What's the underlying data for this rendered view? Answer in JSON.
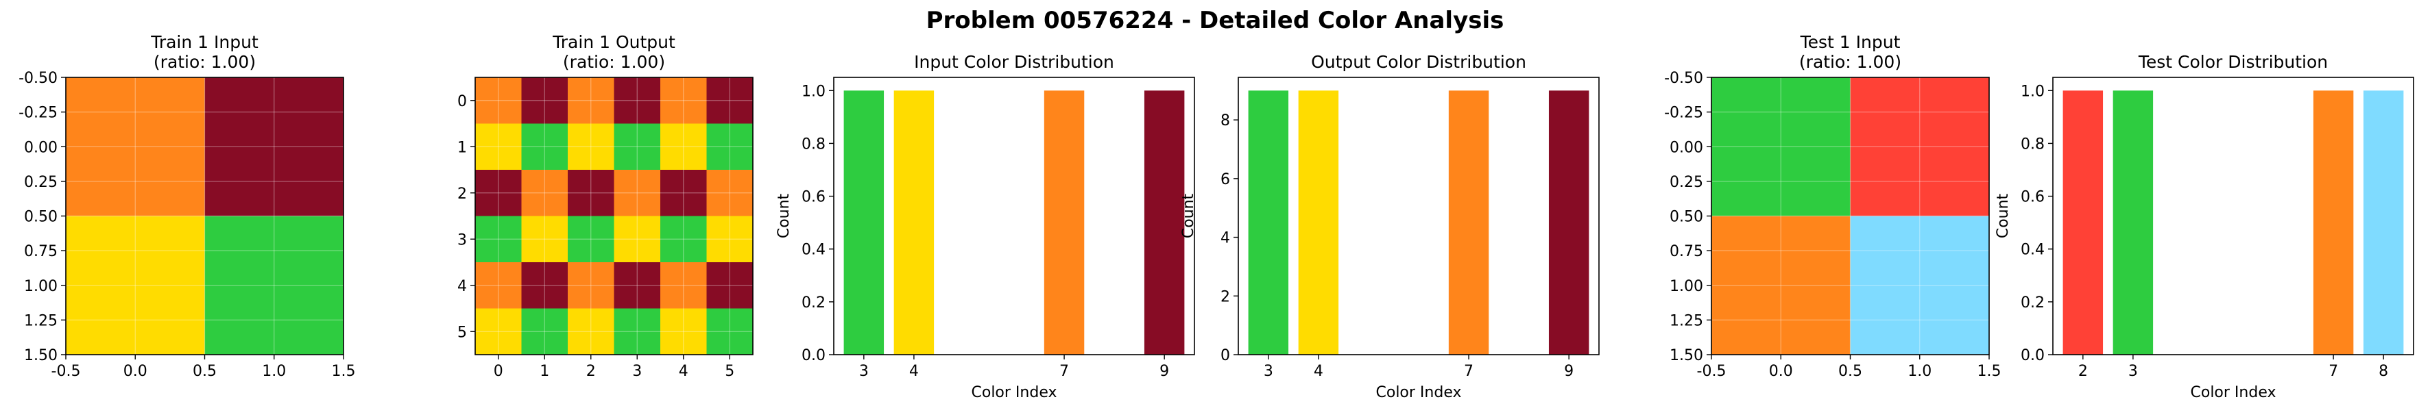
{
  "title": "Problem 00576224 - Detailed Color Analysis",
  "palette": {
    "2": "#FF4136",
    "3": "#2ECC40",
    "4": "#FFDC00",
    "7": "#FF851B",
    "8": "#7FDBFF",
    "9": "#870C25"
  },
  "chart_data": [
    {
      "type": "heatmap",
      "title": "Train 1 Input\n(ratio: 1.00)",
      "grid": [
        [
          7,
          9
        ],
        [
          4,
          3
        ]
      ],
      "xlim": [
        -0.5,
        1.5
      ],
      "ylim": [
        1.5,
        -0.5
      ],
      "xticks": [
        "-0.5",
        "0.0",
        "0.5",
        "1.0",
        "1.5"
      ],
      "yticks": [
        "-0.50",
        "-0.25",
        "0.00",
        "0.25",
        "0.50",
        "0.75",
        "1.00",
        "1.25",
        "1.50"
      ],
      "grid_lines": true
    },
    {
      "type": "heatmap",
      "title": "Train 1 Output\n(ratio: 1.00)",
      "grid": [
        [
          7,
          9,
          7,
          9,
          7,
          9
        ],
        [
          4,
          3,
          4,
          3,
          4,
          3
        ],
        [
          9,
          7,
          9,
          7,
          9,
          7
        ],
        [
          3,
          4,
          3,
          4,
          3,
          4
        ],
        [
          7,
          9,
          7,
          9,
          7,
          9
        ],
        [
          4,
          3,
          4,
          3,
          4,
          3
        ]
      ],
      "xlim": [
        -0.5,
        5.5
      ],
      "ylim": [
        5.5,
        -0.5
      ],
      "xticks": [
        "0",
        "1",
        "2",
        "3",
        "4",
        "5"
      ],
      "yticks": [
        "0",
        "1",
        "2",
        "3",
        "4",
        "5"
      ],
      "grid_lines": true
    },
    {
      "type": "bar",
      "title": "Input Color Distribution",
      "xlabel": "Color Index",
      "ylabel": "Count",
      "categories": [
        3,
        4,
        7,
        9
      ],
      "values": [
        1,
        1,
        1,
        1
      ],
      "xlim": [
        2.4,
        9.6
      ],
      "ylim": [
        0,
        1.05
      ],
      "yticks": [
        "0.0",
        "0.2",
        "0.4",
        "0.6",
        "0.8",
        "1.0"
      ]
    },
    {
      "type": "bar",
      "title": "Output Color Distribution",
      "xlabel": "Color Index",
      "ylabel": "Count",
      "categories": [
        3,
        4,
        7,
        9
      ],
      "values": [
        9,
        9,
        9,
        9
      ],
      "xlim": [
        2.4,
        9.6
      ],
      "ylim": [
        0,
        9.45
      ],
      "yticks": [
        "0",
        "2",
        "4",
        "6",
        "8"
      ]
    },
    {
      "type": "heatmap",
      "title": "Test 1 Input\n(ratio: 1.00)",
      "grid": [
        [
          3,
          2
        ],
        [
          7,
          8
        ]
      ],
      "xlim": [
        -0.5,
        1.5
      ],
      "ylim": [
        1.5,
        -0.5
      ],
      "xticks": [
        "-0.5",
        "0.0",
        "0.5",
        "1.0",
        "1.5"
      ],
      "yticks": [
        "-0.50",
        "-0.25",
        "0.00",
        "0.25",
        "0.50",
        "0.75",
        "1.00",
        "1.25",
        "1.50"
      ],
      "grid_lines": true
    },
    {
      "type": "bar",
      "title": "Test Color Distribution",
      "xlabel": "Color Index",
      "ylabel": "Count",
      "categories": [
        2,
        3,
        7,
        8
      ],
      "values": [
        1,
        1,
        1,
        1
      ],
      "xlim": [
        1.4,
        8.6
      ],
      "ylim": [
        0,
        1.05
      ],
      "yticks": [
        "0.0",
        "0.2",
        "0.4",
        "0.6",
        "0.8",
        "1.0"
      ]
    }
  ]
}
